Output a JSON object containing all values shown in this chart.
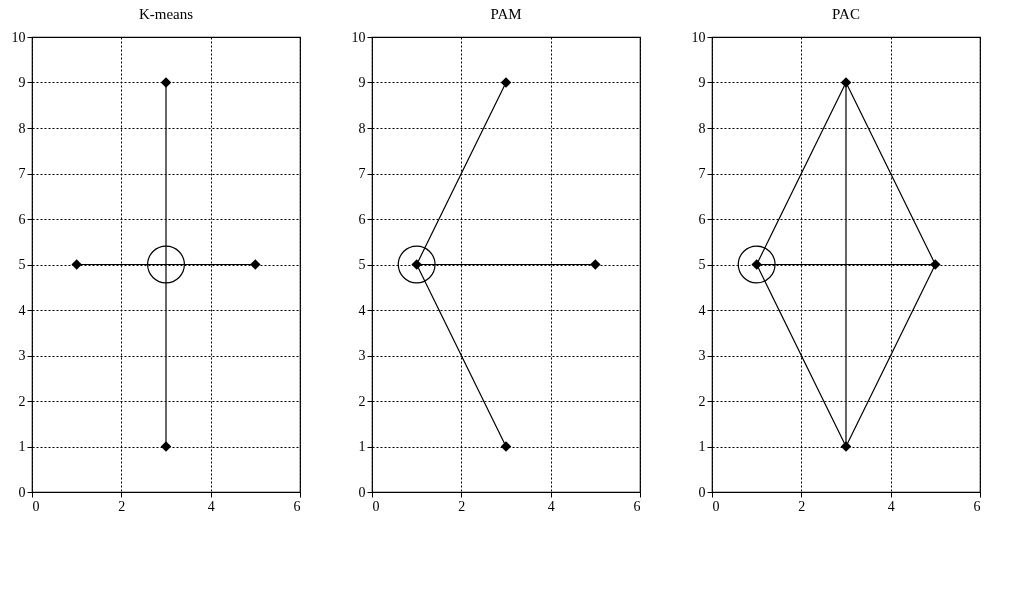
{
  "chart_data": [
    {
      "type": "scatter",
      "title": "K-means",
      "xlim": [
        0,
        6
      ],
      "xticks": [
        0,
        2,
        4,
        6
      ],
      "ylim": [
        0,
        10
      ],
      "yticks": [
        0,
        1,
        2,
        3,
        4,
        5,
        6,
        7,
        8,
        9,
        10
      ],
      "grid": true,
      "series": [
        {
          "type": "line",
          "color": "#000000",
          "marker": "none",
          "x": [
            1,
            5
          ],
          "values": [
            5,
            5
          ]
        },
        {
          "type": "line",
          "color": "#000000",
          "marker": "none",
          "x": [
            3,
            3
          ],
          "values": [
            1,
            9
          ]
        },
        {
          "type": "scatter",
          "color": "#000000",
          "marker": "circle",
          "x": [
            3
          ],
          "values": [
            5
          ]
        },
        {
          "type": "scatter",
          "color": "#000000",
          "marker": "diamond",
          "x": [
            1,
            3,
            5,
            3
          ],
          "values": [
            5,
            9,
            5,
            1
          ]
        }
      ]
    },
    {
      "type": "scatter",
      "title": "PAM",
      "xlim": [
        0,
        6
      ],
      "xticks": [
        0,
        2,
        4,
        6
      ],
      "ylim": [
        0,
        10
      ],
      "yticks": [
        0,
        1,
        2,
        3,
        4,
        5,
        6,
        7,
        8,
        9,
        10
      ],
      "grid": true,
      "series": [
        {
          "type": "line",
          "color": "#000000",
          "marker": "none",
          "x": [
            3,
            1,
            3
          ],
          "values": [
            9,
            5,
            1
          ]
        },
        {
          "type": "line",
          "color": "#000000",
          "marker": "none",
          "x": [
            1,
            5
          ],
          "values": [
            5,
            5
          ]
        },
        {
          "type": "scatter",
          "color": "#000000",
          "marker": "circle",
          "x": [
            1
          ],
          "values": [
            5
          ]
        },
        {
          "type": "scatter",
          "color": "#000000",
          "marker": "diamond",
          "x": [
            1,
            3,
            5,
            3
          ],
          "values": [
            5,
            9,
            5,
            1
          ]
        }
      ]
    },
    {
      "type": "scatter",
      "title": "PAC",
      "xlim": [
        0,
        6
      ],
      "xticks": [
        0,
        2,
        4,
        6
      ],
      "ylim": [
        0,
        10
      ],
      "yticks": [
        0,
        1,
        2,
        3,
        4,
        5,
        6,
        7,
        8,
        9,
        10
      ],
      "grid": true,
      "series": [
        {
          "type": "line",
          "color": "#000000",
          "marker": "none",
          "x": [
            3,
            1,
            3,
            5,
            3,
            3
          ],
          "values": [
            9,
            5,
            1,
            5,
            9,
            1
          ]
        },
        {
          "type": "line",
          "color": "#000000",
          "marker": "none",
          "x": [
            1,
            5
          ],
          "values": [
            5,
            5
          ]
        },
        {
          "type": "scatter",
          "color": "#000000",
          "marker": "circle",
          "x": [
            1
          ],
          "values": [
            5
          ]
        },
        {
          "type": "scatter",
          "color": "#000000",
          "marker": "diamond",
          "x": [
            1,
            3,
            5,
            3
          ],
          "values": [
            5,
            9,
            5,
            1
          ]
        }
      ]
    }
  ]
}
